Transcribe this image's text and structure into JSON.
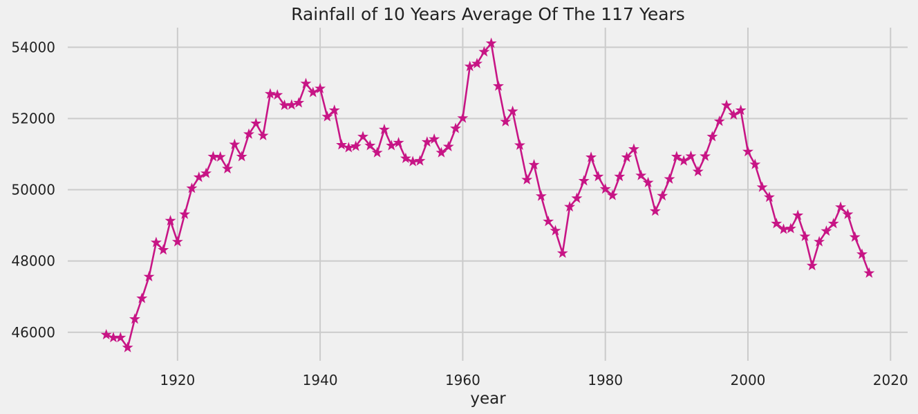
{
  "chart_data": {
    "type": "line",
    "title": "Rainfall of 10 Years Average Of The 117 Years",
    "xlabel": "year",
    "ylabel": "",
    "xlim": [
      1904.6,
      2022.4
    ],
    "ylim": [
      45200,
      54550
    ],
    "x_ticks": [
      1920,
      1940,
      1960,
      1980,
      2000,
      2020
    ],
    "y_ticks": [
      46000,
      48000,
      50000,
      52000,
      54000
    ],
    "grid": true,
    "legend": "none",
    "colors": {
      "background": "#f0f0f0",
      "line": "#c71585",
      "grid": "#cbcbcb",
      "text": "#222222"
    },
    "marker": "star",
    "series": [
      {
        "x": [
          1910,
          1911,
          1912,
          1913,
          1914,
          1915,
          1916,
          1917,
          1918,
          1919,
          1920,
          1921,
          1922,
          1923,
          1924,
          1925,
          1926,
          1927,
          1928,
          1929,
          1930,
          1931,
          1932,
          1933,
          1934,
          1935,
          1936,
          1937,
          1938,
          1939,
          1940,
          1941,
          1942,
          1943,
          1944,
          1945,
          1946,
          1947,
          1948,
          1949,
          1950,
          1951,
          1952,
          1953,
          1954,
          1955,
          1956,
          1957,
          1958,
          1959,
          1960,
          1961,
          1962,
          1963,
          1964,
          1965,
          1966,
          1967,
          1968,
          1969,
          1970,
          1971,
          1972,
          1973,
          1974,
          1975,
          1976,
          1977,
          1978,
          1979,
          1980,
          1981,
          1982,
          1983,
          1984,
          1985,
          1986,
          1987,
          1988,
          1989,
          1990,
          1991,
          1992,
          1993,
          1994,
          1995,
          1996,
          1997,
          1998,
          1999,
          2000,
          2001,
          2002,
          2003,
          2004,
          2005,
          2006,
          2007,
          2008,
          2009,
          2010,
          2011,
          2012,
          2013,
          2014,
          2015,
          2016,
          2017
        ],
        "values": [
          45930,
          45850,
          45850,
          45570,
          46370,
          46950,
          47560,
          48520,
          48310,
          49130,
          48540,
          49310,
          50040,
          50350,
          50460,
          50930,
          50920,
          50590,
          51270,
          50930,
          51560,
          51860,
          51520,
          52690,
          52660,
          52370,
          52380,
          52440,
          52980,
          52730,
          52840,
          52050,
          52230,
          51260,
          51180,
          51220,
          51490,
          51240,
          51040,
          51690,
          51240,
          51320,
          50880,
          50790,
          50810,
          51340,
          51420,
          51040,
          51210,
          51720,
          52010,
          53460,
          53540,
          53870,
          54110,
          52910,
          51910,
          52200,
          51250,
          50280,
          50700,
          49820,
          49110,
          48850,
          48220,
          49520,
          49760,
          50250,
          50910,
          50370,
          50020,
          49840,
          50370,
          50910,
          51140,
          50400,
          50200,
          49400,
          49830,
          50300,
          50930,
          50810,
          50940,
          50510,
          50940,
          51490,
          51920,
          52370,
          52100,
          52230,
          51070,
          50710,
          50070,
          49790,
          49050,
          48890,
          48910,
          49280,
          48690,
          47870,
          48540,
          48840,
          49050,
          49510,
          49310,
          48670,
          48190,
          47660
        ]
      }
    ]
  }
}
